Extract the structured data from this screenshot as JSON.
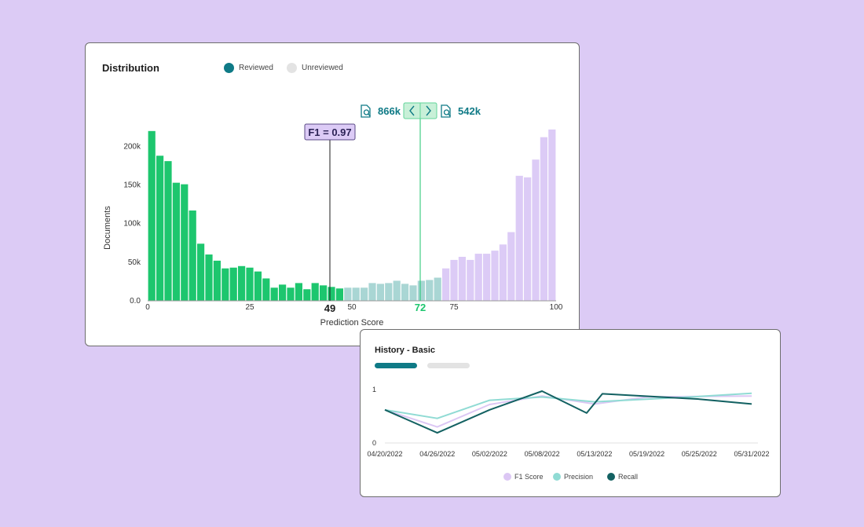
{
  "distribution": {
    "title": "Distribution",
    "legend": [
      {
        "label": "Reviewed",
        "color": "#0f7a86"
      },
      {
        "label": "Unreviewed",
        "color": "#e3e3e3"
      }
    ],
    "f1_label": "F1 = 0.97",
    "left_count": "866k",
    "right_count": "542k",
    "threshold_low_label": "49",
    "threshold_high_label": "72"
  },
  "history": {
    "title": "History - Basic"
  },
  "chart_data": [
    {
      "type": "bar",
      "title": "Distribution",
      "xlabel": "Prediction Score",
      "ylabel": "Documents",
      "xlim": [
        0,
        100
      ],
      "ylim": [
        0,
        230000
      ],
      "x_ticks": [
        "0",
        "25",
        "50",
        "75",
        "100"
      ],
      "y_ticks": [
        "0.0",
        "50k",
        "100k",
        "150k",
        "200k"
      ],
      "threshold_low": 49,
      "threshold_high": 72,
      "colors": {
        "low": "#1dc66e",
        "mid": "#a9d6d4",
        "high": "#dccbf6"
      },
      "categories": [
        1,
        3,
        5,
        7,
        9,
        11,
        13,
        15,
        17,
        19,
        21,
        23,
        25,
        27,
        29,
        31,
        33,
        35,
        37,
        39,
        41,
        43,
        45,
        47,
        49,
        51,
        53,
        55,
        57,
        59,
        61,
        63,
        65,
        67,
        69,
        71,
        73,
        75,
        77,
        79,
        81,
        83,
        85,
        87,
        89,
        91,
        93,
        95,
        97,
        99
      ],
      "values": [
        220000,
        188000,
        181000,
        153000,
        151000,
        117000,
        74000,
        60000,
        52000,
        42000,
        43000,
        45000,
        43000,
        38000,
        29000,
        17000,
        21000,
        17000,
        23000,
        15000,
        23000,
        20000,
        18000,
        16000,
        17000,
        17000,
        17000,
        23000,
        22000,
        23000,
        26000,
        22000,
        20000,
        26000,
        27000,
        30000,
        42000,
        53000,
        57000,
        53000,
        61000,
        61000,
        65000,
        73000,
        89000,
        162000,
        160000,
        183000,
        212000,
        222000
      ]
    },
    {
      "type": "line",
      "title": "History - Basic",
      "x": [
        "04/20/2022",
        "04/26/2022",
        "05/02/2022",
        "05/08/2022",
        "05/13/2022",
        "05/19/2022",
        "05/25/2022",
        "05/31/2022"
      ],
      "ylim": [
        0,
        1
      ],
      "y_ticks": [
        "0",
        "1"
      ],
      "legend_position": "bottom",
      "series": [
        {
          "name": "F1 Score",
          "color": "#dcc7f4",
          "points": [
            [
              0,
              0.62
            ],
            [
              1,
              0.3
            ],
            [
              2,
              0.72
            ],
            [
              3,
              0.88
            ],
            [
              4,
              0.73
            ],
            [
              5,
              0.86
            ],
            [
              6,
              0.87
            ],
            [
              7,
              0.88
            ]
          ]
        },
        {
          "name": "Precision",
          "color": "#90dbd4",
          "points": [
            [
              0,
              0.62
            ],
            [
              1,
              0.46
            ],
            [
              2,
              0.8
            ],
            [
              3,
              0.86
            ],
            [
              4,
              0.77
            ],
            [
              5,
              0.82
            ],
            [
              6,
              0.87
            ],
            [
              7,
              0.93
            ]
          ]
        },
        {
          "name": "Recall",
          "color": "#136162",
          "points": [
            [
              0,
              0.62
            ],
            [
              1,
              0.19
            ],
            [
              2,
              0.62
            ],
            [
              3,
              0.97
            ],
            [
              3.85,
              0.56
            ],
            [
              4.15,
              0.92
            ],
            [
              6,
              0.82
            ],
            [
              7,
              0.73
            ]
          ]
        }
      ]
    }
  ]
}
